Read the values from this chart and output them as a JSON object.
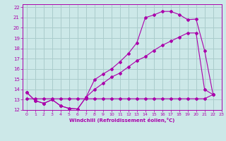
{
  "bg_color": "#cce8e8",
  "grid_color": "#aacccc",
  "line_color": "#aa00aa",
  "xlabel": "Windchill (Refroidissement éolien,°C)",
  "xlim": [
    -0.5,
    23
  ],
  "ylim": [
    12,
    22.3
  ],
  "yticks": [
    12,
    13,
    14,
    15,
    16,
    17,
    18,
    19,
    20,
    21,
    22
  ],
  "xticks": [
    0,
    1,
    2,
    3,
    4,
    5,
    6,
    7,
    8,
    9,
    10,
    11,
    12,
    13,
    14,
    15,
    16,
    17,
    18,
    19,
    20,
    21,
    22,
    23
  ],
  "line1_x": [
    0,
    1,
    2,
    3,
    4,
    5,
    6,
    7,
    8,
    9,
    10,
    11,
    12,
    13,
    14,
    15,
    16,
    17,
    18,
    19,
    20,
    21,
    22
  ],
  "line1_y": [
    13.7,
    12.9,
    12.65,
    13.0,
    12.4,
    12.15,
    12.1,
    13.25,
    14.95,
    15.5,
    16.0,
    16.7,
    17.5,
    18.55,
    21.0,
    21.25,
    21.6,
    21.6,
    21.3,
    20.8,
    20.85,
    17.8,
    13.5
  ],
  "line2_x": [
    0,
    1,
    2,
    3,
    4,
    5,
    6,
    7,
    8,
    9,
    10,
    11,
    12,
    13,
    14,
    15,
    16,
    17,
    18,
    19,
    20,
    21,
    22
  ],
  "line2_y": [
    13.7,
    12.9,
    12.65,
    13.0,
    12.4,
    12.15,
    12.1,
    13.25,
    14.0,
    14.6,
    15.2,
    15.6,
    16.2,
    16.8,
    17.2,
    17.8,
    18.3,
    18.7,
    19.1,
    19.5,
    19.5,
    14.0,
    13.5
  ],
  "line3_x": [
    0,
    1,
    2,
    3,
    4,
    5,
    6,
    7,
    8,
    9,
    10,
    11,
    12,
    13,
    14,
    15,
    16,
    17,
    18,
    19,
    20,
    21,
    22
  ],
  "line3_y": [
    13.1,
    13.1,
    13.1,
    13.1,
    13.1,
    13.1,
    13.1,
    13.1,
    13.1,
    13.1,
    13.1,
    13.1,
    13.1,
    13.1,
    13.1,
    13.1,
    13.1,
    13.1,
    13.1,
    13.1,
    13.1,
    13.1,
    13.5
  ]
}
